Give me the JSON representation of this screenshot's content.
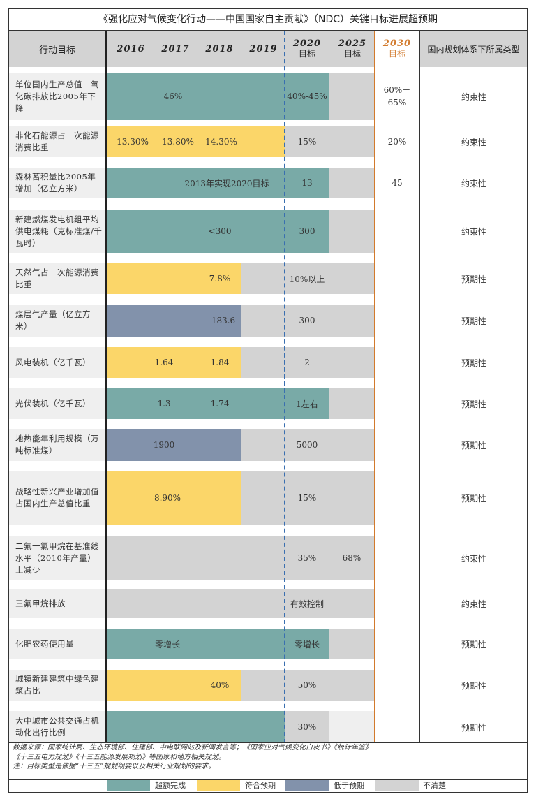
{
  "title": "《强化应对气候变化行动——中国国家自主贡献》（NDC）关键目标进展超预期",
  "headers": {
    "action": "行动目标",
    "y2016": "2016",
    "y2017": "2017",
    "y2018": "2018",
    "y2019": "2019",
    "t2020a": "2020",
    "t2020b": "目标",
    "t2025a": "2025",
    "t2025b": "目标",
    "t2030a": "2030",
    "t2030b": "目标",
    "type": "国内规划体系下所属类型"
  },
  "colors": {
    "exceeded": "#79aaa7",
    "meets": "#fbd669",
    "below": "#8292ab",
    "unclear": "#d3d3d3"
  },
  "rows": [
    {
      "label": "单位国内生产总值二氧化碳排放比2005年下降",
      "v1": "46%",
      "v2020": "40%-45%",
      "v2025": "",
      "v2030": "60%－65%",
      "type": "约束性"
    },
    {
      "label": "非化石能源占一次能源消费比重",
      "v2016": "13.30%",
      "v2017": "13.80%",
      "v2018": "14.30%",
      "v2020": "15%",
      "v2030": "20%",
      "type": "约束性"
    },
    {
      "label": "森林蓄积量比2005年增加（亿立方米）",
      "v1": "2013年实现2020目标",
      "v2020": "13",
      "v2030": "45",
      "type": "约束性"
    },
    {
      "label": "新建燃煤发电机组平均供电煤耗（克标准煤/千瓦时）",
      "v1": "<300",
      "v2020": "300",
      "type": "约束性"
    },
    {
      "label": "天然气占一次能源消费比重",
      "v1": "7.8%",
      "v2020": "10%以上",
      "type": "预期性"
    },
    {
      "label": "煤层气产量（亿立方米）",
      "v1": "183.6",
      "v2020": "300",
      "type": "预期性"
    },
    {
      "label": "风电装机（亿千瓦）",
      "v2016": "1.64",
      "v2018": "1.84",
      "v2020": "2",
      "type": "预期性"
    },
    {
      "label": "光伏装机（亿千瓦）",
      "v2016": "1.3",
      "v2018": "1.74",
      "v2020": "1左右",
      "type": "预期性"
    },
    {
      "label": "地热能年利用规模（万吨标准煤）",
      "v1": "1900",
      "v2020": "5000",
      "type": "预期性"
    },
    {
      "label": "战略性新兴产业增加值占国内生产总值比重",
      "v1": "8.90%",
      "v2020": "15%",
      "type": "预期性"
    },
    {
      "label": "二氟一氯甲烷在基准线水平（2010年产量）上减少",
      "v2020": "35%",
      "v2025": "68%",
      "type": "约束性"
    },
    {
      "label": "三氟甲烷排放",
      "v2020": "有效控制",
      "type": "约束性"
    },
    {
      "label": "化肥农药使用量",
      "v1": "零增长",
      "v2020": "零增长",
      "type": "预期性"
    },
    {
      "label": "城镇新建建筑中绿色建筑占比",
      "v1": "40%",
      "v2020": "50%",
      "type": "预期性"
    },
    {
      "label": "大中城市公共交通占机动化出行比例",
      "v2020": "30%",
      "type": "预期性"
    }
  ],
  "source": {
    "line1": "数据来源：国家统计局、生态环境部、住建部、中电联网站及新闻发言等；《国家应对气候变化白皮书》《统计年鉴》",
    "line2": "《十三五电力规划》《十三五能源发展规划》等国家和地方相关规划。",
    "line3": "注：目标类型是依据“十三五”规划纲要以及相关行业规划的要求。"
  },
  "legend": {
    "exceeded": "超额完成",
    "meets": "符合预期",
    "below": "低于预期",
    "unclear": "不清楚"
  }
}
